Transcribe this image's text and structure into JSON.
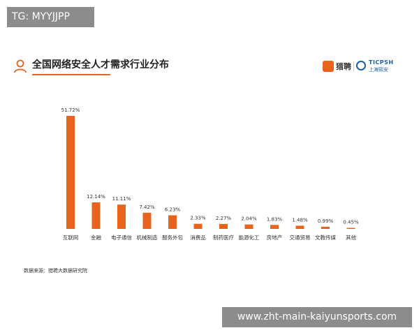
{
  "tag": "TG: MYYJJPP",
  "watermark": "www.zht-main-kaiyunsports.com",
  "header": {
    "title": "全国网络安全人才需求行业分布",
    "brand_liepin": "猎聘",
    "brand_ticpsh": "TICPSH",
    "brand_ticpsh_sub": "上海熙安"
  },
  "source_text": "数据来源：猎聘大数据研究院",
  "colors": {
    "bar": "#e8631c",
    "accent": "#e8631c",
    "brand_blue": "#1f5fa8"
  },
  "chart_data": {
    "type": "bar",
    "title": "全国网络安全人才需求行业分布",
    "xlabel": "",
    "ylabel": "",
    "grid": false,
    "legend": "none",
    "ylim": [
      0,
      55
    ],
    "categories": [
      "互联网",
      "金融",
      "电子通信",
      "机械制造",
      "服务外包",
      "消费品",
      "制药医疗",
      "能源化工",
      "房地产",
      "交通贸易",
      "文教传媒",
      "其他"
    ],
    "values": [
      51.72,
      12.14,
      11.11,
      7.42,
      6.23,
      2.33,
      2.27,
      2.04,
      1.83,
      1.48,
      0.99,
      0.45
    ],
    "data_labels": [
      "51.72%",
      "12.14%",
      "11.11%",
      "7.42%",
      "6.23%",
      "2.33%",
      "2.27%",
      "2.04%",
      "1.83%",
      "1.48%",
      "0.99%",
      "0.45%"
    ]
  }
}
